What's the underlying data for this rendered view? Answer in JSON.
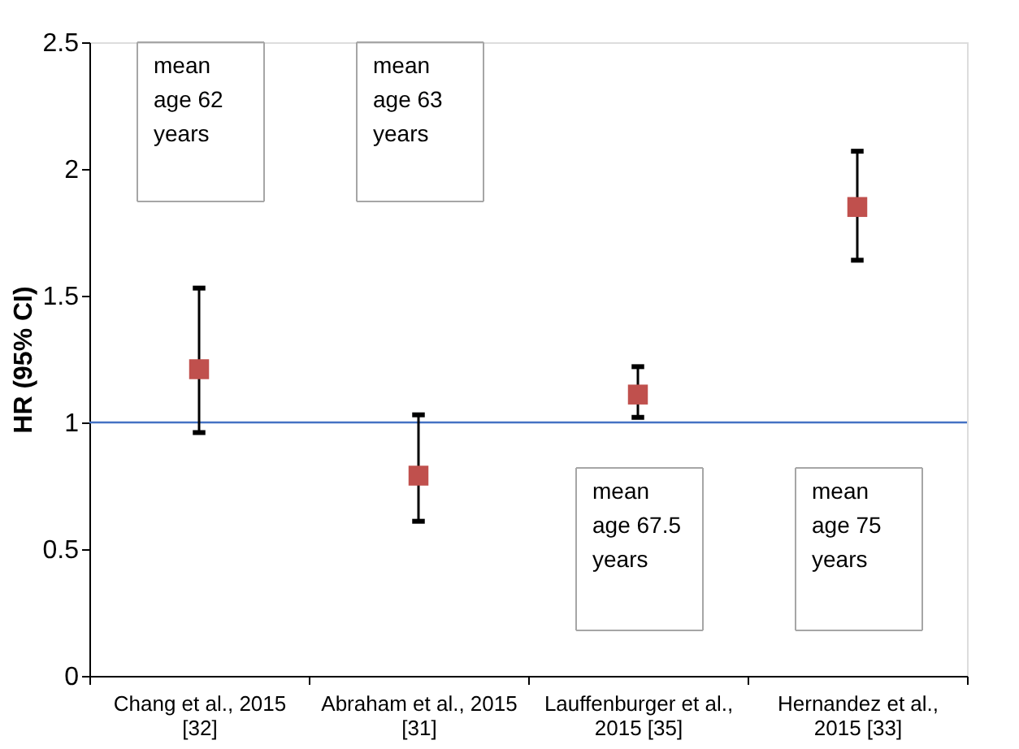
{
  "chart_data": {
    "type": "scatter",
    "ylabel": "HR (95% CI)",
    "categories": [
      "Chang et al., 2015 [32]",
      "Abraham et al., 2015 [31]",
      "Lauffenburger et al., 2015 [35]",
      "Hernandez et al., 2015 [33]"
    ],
    "series": [
      {
        "color": "#c0504d",
        "values": [
          1.21,
          0.79,
          1.11,
          1.85
        ],
        "errors": [
          [
            0.96,
            1.53
          ],
          [
            0.61,
            1.03
          ],
          [
            1.02,
            1.22
          ],
          [
            1.64,
            2.07
          ]
        ]
      }
    ],
    "marker": "square",
    "ylim": [
      0,
      2.5
    ],
    "yticks": [
      0,
      0.5,
      1,
      1.5,
      2,
      2.5
    ],
    "grid": false,
    "ref_lines": [
      {
        "axis": "y",
        "value": 1,
        "color": "#4472c4"
      }
    ],
    "annotations": [
      "mean age 62 years",
      "mean age 63 years",
      "mean age 67.5 years",
      "mean age 75 years"
    ]
  }
}
